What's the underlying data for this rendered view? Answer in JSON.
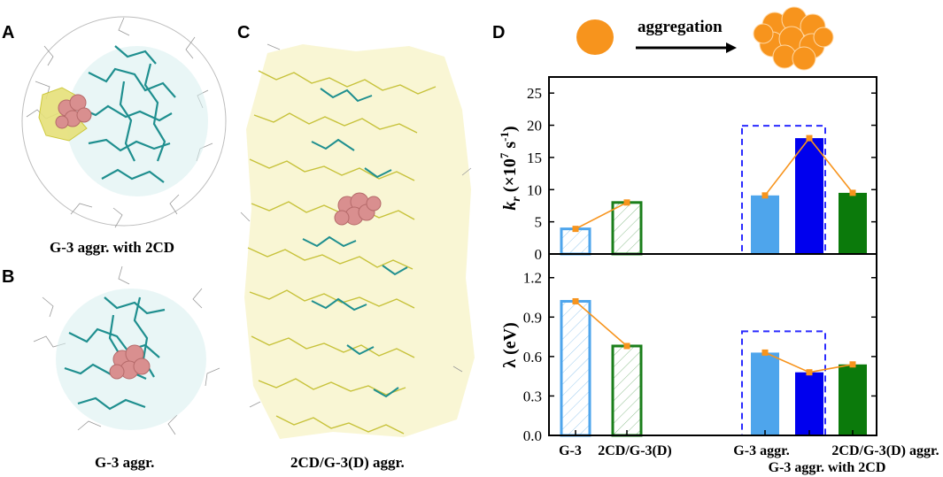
{
  "panels": {
    "a_letter": "A",
    "b_letter": "B",
    "c_letter": "C",
    "d_letter": "D",
    "a_caption": "G-3 aggr. with 2CD",
    "b_caption": "G-3 aggr.",
    "c_caption": "2CD/G-3(D) aggr."
  },
  "schematic": {
    "label": "aggregation",
    "color": "#f7941d"
  },
  "chart_data": [
    {
      "type": "bar",
      "ylabel_main": "k",
      "ylabel_sub": "r",
      "ylabel_units": "(×10",
      "ylabel_exp": "7",
      "ylabel_s": "s",
      "ylabel_exp2": "-1",
      "ylabel_close": ")",
      "ylim": [
        0,
        27.5
      ],
      "yticks": [
        "0",
        "5",
        "10",
        "15",
        "20",
        "25"
      ],
      "categories": [
        "G-3",
        "2CD/G-3(D)",
        "G-3 aggr.",
        "G-3 aggr. with 2CD",
        "2CD/G-3(D) aggr."
      ],
      "values": [
        3.9,
        8.0,
        9.1,
        18.0,
        9.5
      ],
      "styles": [
        "hollow-hatched",
        "hollow-hatched",
        "filled",
        "filled",
        "filled"
      ],
      "colors": [
        "#4ea5ec",
        "#1b7f1b",
        "#4ea5ec",
        "#0000ee",
        "#0b7a0b"
      ],
      "line_color": "#f7941d",
      "dashed_box_color": "#2b2bff"
    },
    {
      "type": "bar",
      "ylabel": "λ (eV)",
      "ylim": [
        0,
        1.38
      ],
      "yticks": [
        "0.0",
        "0.3",
        "0.6",
        "0.9",
        "1.2"
      ],
      "categories": [
        "G-3",
        "2CD/G-3(D)",
        "G-3 aggr.",
        "G-3 aggr. with 2CD",
        "2CD/G-3(D) aggr."
      ],
      "values": [
        1.02,
        0.68,
        0.63,
        0.48,
        0.54
      ],
      "styles": [
        "hollow-hatched",
        "hollow-hatched",
        "filled",
        "filled",
        "filled"
      ],
      "colors": [
        "#4ea5ec",
        "#1b7f1b",
        "#4ea5ec",
        "#0000ee",
        "#0b7a0b"
      ],
      "line_color": "#f7941d",
      "dashed_box_color": "#2b2bff"
    }
  ]
}
